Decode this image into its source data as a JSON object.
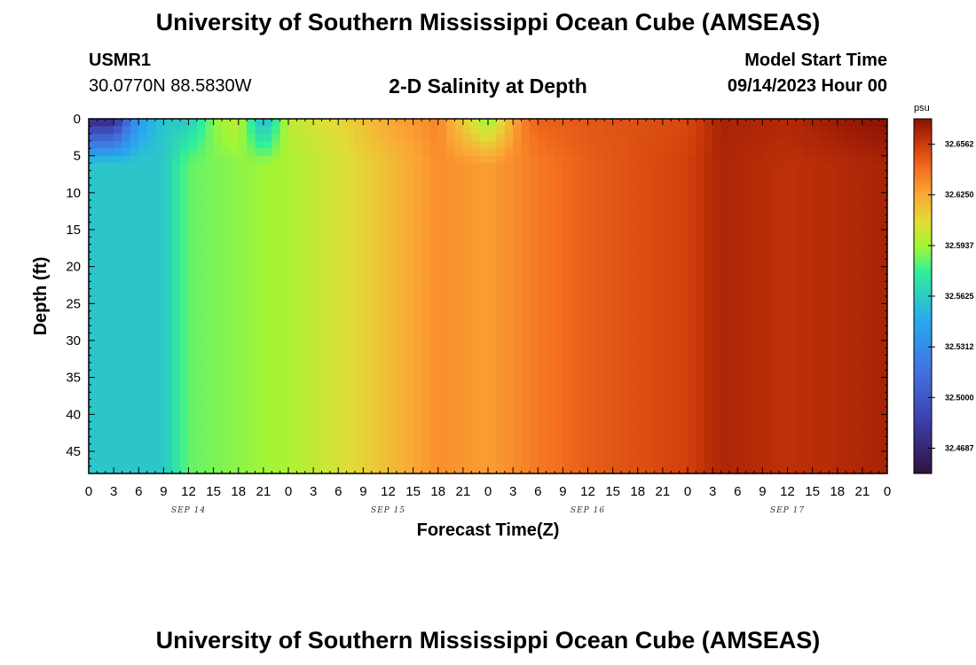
{
  "header": {
    "title": "University of Southern Mississippi Ocean Cube (AMSEAS)",
    "station_id": "USMR1",
    "coordinates": "30.0770N  88.5830W",
    "subtitle": "2-D Salinity at Depth",
    "model_start_label": "Model Start Time",
    "model_start_value": "09/14/2023 Hour 00"
  },
  "footer": {
    "title": "University of Southern Mississippi Ocean Cube (AMSEAS)"
  },
  "chart_data": {
    "type": "heatmap",
    "xlabel": "Forecast Time(Z)",
    "ylabel": "Depth (ft)",
    "x_range_hours": [
      0,
      96
    ],
    "y_range_ft": [
      0,
      48
    ],
    "y_inverted": true,
    "x_tick_labels": [
      "0",
      "3",
      "6",
      "9",
      "12",
      "15",
      "18",
      "21",
      "0",
      "3",
      "6",
      "9",
      "12",
      "15",
      "18",
      "21",
      "0",
      "3",
      "6",
      "9",
      "12",
      "15",
      "18",
      "21",
      "0",
      "3",
      "6",
      "9",
      "12",
      "15",
      "18",
      "21",
      "0"
    ],
    "y_ticks": [
      0,
      5,
      10,
      15,
      20,
      25,
      30,
      35,
      40,
      45
    ],
    "day_labels": [
      {
        "label": "SEP 14",
        "hour": 12
      },
      {
        "label": "SEP 15",
        "hour": 36
      },
      {
        "label": "SEP 16",
        "hour": 60
      },
      {
        "label": "SEP 17",
        "hour": 84
      }
    ],
    "colorbar": {
      "unit": "psu",
      "min": 32.4531,
      "max": 32.6719,
      "tick_values": [
        32.6562,
        32.625,
        32.5937,
        32.5625,
        32.5312,
        32.5,
        32.4687
      ],
      "tick_labels": [
        "32.6562",
        "32.6250",
        "32.5937",
        "32.5625",
        "32.5312",
        "32.5000",
        "32.4687"
      ]
    },
    "surface_salinity_by_hour": [
      [
        0,
        32.47
      ],
      [
        3,
        32.47
      ],
      [
        6,
        32.54
      ],
      [
        9,
        32.56
      ],
      [
        12,
        32.56
      ],
      [
        15,
        32.59
      ],
      [
        18,
        32.6
      ],
      [
        21,
        32.55
      ],
      [
        24,
        32.6
      ],
      [
        30,
        32.61
      ],
      [
        36,
        32.625
      ],
      [
        42,
        32.635
      ],
      [
        48,
        32.59
      ],
      [
        52,
        32.635
      ],
      [
        54,
        32.645
      ],
      [
        60,
        32.648
      ],
      [
        66,
        32.65
      ],
      [
        72,
        32.652
      ],
      [
        76,
        32.665
      ],
      [
        84,
        32.663
      ],
      [
        90,
        32.668
      ],
      [
        96,
        32.672
      ]
    ],
    "bottom_salinity_by_hour": [
      [
        0,
        32.56
      ],
      [
        9,
        32.56
      ],
      [
        12,
        32.585
      ],
      [
        24,
        32.595
      ],
      [
        30,
        32.605
      ],
      [
        36,
        32.618
      ],
      [
        42,
        32.632
      ],
      [
        48,
        32.628
      ],
      [
        54,
        32.638
      ],
      [
        60,
        32.646
      ],
      [
        66,
        32.65
      ],
      [
        72,
        32.655
      ],
      [
        76,
        32.664
      ],
      [
        84,
        32.66
      ],
      [
        90,
        32.662
      ],
      [
        96,
        32.665
      ]
    ]
  }
}
